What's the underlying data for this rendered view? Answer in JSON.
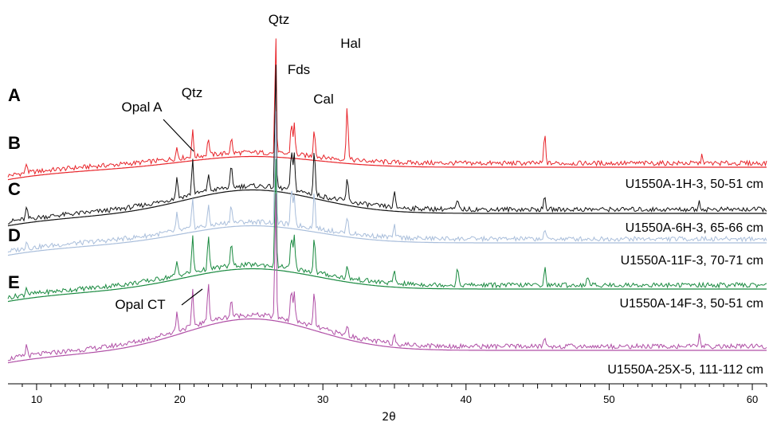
{
  "chart_data": {
    "type": "line",
    "xlabel": "2θ",
    "ylabel": "",
    "xlim": [
      8,
      61
    ],
    "x_ticks": [
      "10",
      "20",
      "30",
      "40",
      "50",
      "60"
    ],
    "grid": false,
    "series": [
      {
        "name": "U1550A-1H-3, 50-51 cm",
        "letter": "A",
        "color": "#e8242a",
        "peaks": [
          [
            9.3,
            12
          ],
          [
            19.8,
            14
          ],
          [
            20.9,
            32
          ],
          [
            22.0,
            22
          ],
          [
            23.6,
            20
          ],
          [
            26.7,
            160
          ],
          [
            27.8,
            40
          ],
          [
            28.0,
            38
          ],
          [
            29.4,
            36
          ],
          [
            31.7,
            70
          ],
          [
            45.5,
            36
          ],
          [
            56.5,
            10
          ]
        ]
      },
      {
        "name": "U1550A-6H-3, 65-66 cm",
        "letter": "B",
        "color": "#111111",
        "peaks": [
          [
            9.3,
            14
          ],
          [
            19.8,
            28
          ],
          [
            20.9,
            44
          ],
          [
            22.0,
            22
          ],
          [
            23.6,
            26
          ],
          [
            26.7,
            168
          ],
          [
            27.8,
            50
          ],
          [
            28.0,
            46
          ],
          [
            29.4,
            58
          ],
          [
            31.7,
            30
          ],
          [
            35.0,
            18
          ],
          [
            39.4,
            12
          ],
          [
            45.5,
            16
          ],
          [
            56.3,
            10
          ]
        ]
      },
      {
        "name": "U1550A-11F-3, 70-71 cm",
        "letter": "C",
        "color": "#a9bedb",
        "peaks": [
          [
            9.3,
            10
          ],
          [
            19.8,
            22
          ],
          [
            20.9,
            36
          ],
          [
            22.0,
            24
          ],
          [
            23.6,
            24
          ],
          [
            26.7,
            150
          ],
          [
            27.8,
            44
          ],
          [
            28.0,
            40
          ],
          [
            29.4,
            46
          ],
          [
            31.7,
            22
          ],
          [
            35.0,
            14
          ],
          [
            45.5,
            12
          ]
        ]
      },
      {
        "name": "U1550A-14F-3, 50-51 cm",
        "letter": "D",
        "color": "#1a8a40",
        "peaks": [
          [
            9.3,
            10
          ],
          [
            19.8,
            18
          ],
          [
            20.9,
            44
          ],
          [
            22.0,
            40
          ],
          [
            23.6,
            30
          ],
          [
            26.7,
            150
          ],
          [
            27.8,
            40
          ],
          [
            28.0,
            40
          ],
          [
            29.4,
            44
          ],
          [
            31.7,
            14
          ],
          [
            35.0,
            16
          ],
          [
            39.4,
            22
          ],
          [
            45.5,
            22
          ],
          [
            48.5,
            12
          ]
        ]
      },
      {
        "name": "U1550A-25X-5, 111-112 cm",
        "letter": "E",
        "color": "#b04fa6",
        "peaks": [
          [
            9.3,
            14
          ],
          [
            19.8,
            24
          ],
          [
            20.9,
            44
          ],
          [
            22.0,
            52
          ],
          [
            23.6,
            22
          ],
          [
            26.7,
            170
          ],
          [
            27.8,
            40
          ],
          [
            28.0,
            38
          ],
          [
            29.4,
            44
          ],
          [
            31.7,
            14
          ],
          [
            35.0,
            12
          ],
          [
            45.5,
            12
          ],
          [
            56.3,
            14
          ]
        ]
      }
    ],
    "annotations": [
      {
        "text": "Qtz",
        "x": 26.7,
        "series": 0
      },
      {
        "text": "Fds",
        "x": 27.8,
        "series": 0
      },
      {
        "text": "Hal",
        "x": 31.7,
        "series": 0
      },
      {
        "text": "Cal",
        "x": 29.4,
        "series": 0
      },
      {
        "text": "Qtz",
        "x": 20.9,
        "series": 0
      },
      {
        "text": "Opal A",
        "x": 21.0,
        "series": 1
      },
      {
        "text": "Opal CT",
        "x": 21.8,
        "series": 4
      }
    ]
  }
}
